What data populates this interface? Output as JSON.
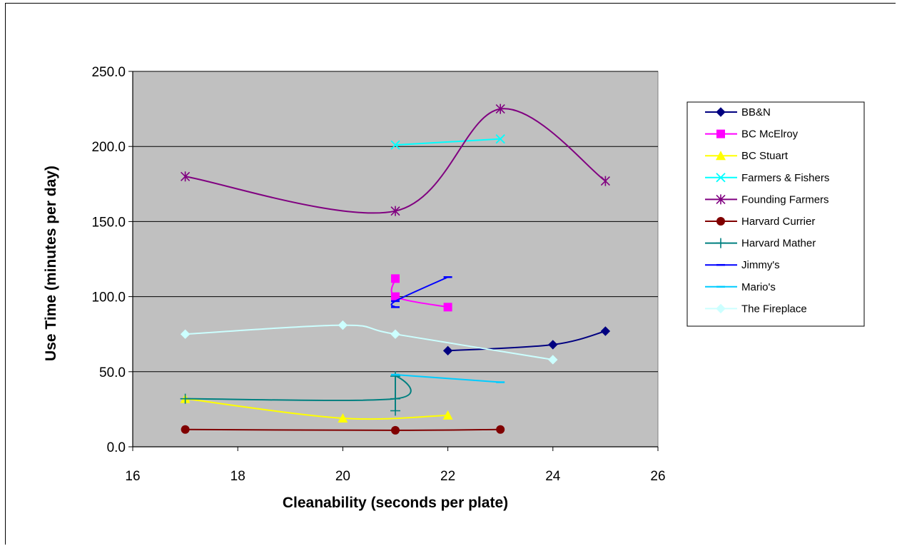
{
  "chart_data": {
    "type": "scatter",
    "title": "",
    "xlabel": "Cleanability (seconds per plate)",
    "ylabel": "Use Time (minutes per day)",
    "xlim": [
      16,
      26
    ],
    "ylim": [
      0,
      250
    ],
    "x_ticks": [
      "16",
      "18",
      "20",
      "22",
      "24",
      "26"
    ],
    "y_ticks": [
      "0.0",
      "50.0",
      "100.0",
      "150.0",
      "200.0",
      "250.0"
    ],
    "grid": "horizontal",
    "plot_background": "#c0c0c0",
    "legend_position": "right",
    "series": [
      {
        "name": "BB&N",
        "color": "#000080",
        "marker": "diamond",
        "points": [
          [
            22,
            64
          ],
          [
            24,
            68
          ],
          [
            25,
            77
          ]
        ]
      },
      {
        "name": "BC McElroy",
        "color": "#ff00ff",
        "marker": "square",
        "points": [
          [
            21,
            112
          ],
          [
            21,
            100
          ],
          [
            22,
            93
          ]
        ]
      },
      {
        "name": "BC Stuart",
        "color": "#ffff00",
        "marker": "triangle",
        "points": [
          [
            17,
            32
          ],
          [
            20,
            19
          ],
          [
            22,
            21
          ]
        ]
      },
      {
        "name": "Farmers & Fishers",
        "color": "#00ffff",
        "marker": "x",
        "points": [
          [
            21,
            201
          ],
          [
            23,
            205
          ]
        ]
      },
      {
        "name": "Founding Farmers",
        "color": "#800080",
        "marker": "star",
        "points": [
          [
            17,
            180
          ],
          [
            21,
            157
          ],
          [
            23,
            225
          ],
          [
            25,
            177
          ]
        ]
      },
      {
        "name": "Harvard Currier",
        "color": "#800000",
        "marker": "circle",
        "points": [
          [
            17,
            11.5
          ],
          [
            21,
            11
          ],
          [
            23,
            11.5
          ]
        ]
      },
      {
        "name": "Harvard Mather",
        "color": "#008080",
        "marker": "plus",
        "points": [
          [
            17,
            32
          ],
          [
            21,
            32
          ],
          [
            21,
            47
          ],
          [
            21,
            24
          ]
        ]
      },
      {
        "name": "Jimmy's",
        "color": "#0000ff",
        "marker": "dash",
        "points": [
          [
            21,
            93
          ],
          [
            21,
            97
          ],
          [
            22,
            113
          ]
        ]
      },
      {
        "name": "Mario's",
        "color": "#00ccff",
        "marker": "dash",
        "points": [
          [
            21,
            48
          ],
          [
            23,
            43
          ]
        ]
      },
      {
        "name": "The Fireplace",
        "color": "#ccffff",
        "marker": "diamond",
        "points": [
          [
            17,
            75
          ],
          [
            20,
            81
          ],
          [
            21,
            75
          ],
          [
            24,
            58
          ]
        ]
      }
    ]
  }
}
